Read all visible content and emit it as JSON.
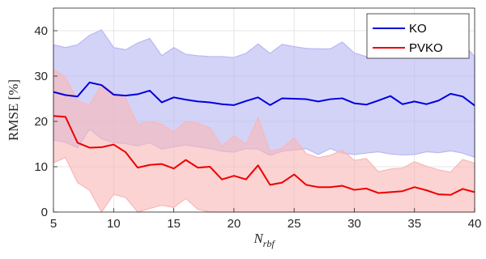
{
  "chart_data": {
    "type": "area",
    "title": "",
    "xlabel": "N",
    "xlabel_subscript": "rbf",
    "ylabel": "RMSE [%]",
    "xlim": [
      5,
      40
    ],
    "ylim": [
      0,
      45
    ],
    "xticks": [
      5,
      10,
      15,
      20,
      25,
      30,
      35,
      40
    ],
    "yticks": [
      0,
      10,
      20,
      30,
      40
    ],
    "grid": true,
    "legend_position": "top-right",
    "x": [
      5,
      6,
      7,
      8,
      9,
      10,
      11,
      12,
      13,
      14,
      15,
      16,
      17,
      18,
      19,
      20,
      21,
      22,
      23,
      24,
      25,
      26,
      27,
      28,
      29,
      30,
      31,
      32,
      33,
      34,
      35,
      36,
      37,
      38,
      39,
      40
    ],
    "series": [
      {
        "name": "KO",
        "color": "#0000dd",
        "band_color": "#b8b8f4",
        "mean": [
          26.5,
          25.8,
          25.5,
          28.6,
          28.0,
          25.9,
          25.7,
          26.0,
          26.8,
          24.2,
          25.3,
          24.8,
          24.4,
          24.2,
          23.8,
          23.6,
          24.5,
          25.3,
          23.6,
          25.1,
          25.0,
          24.9,
          24.4,
          24.9,
          25.1,
          24.0,
          23.7,
          24.6,
          25.6,
          23.8,
          24.4,
          23.8,
          24.6,
          26.1,
          25.5,
          23.5
        ],
        "upper": [
          36.9,
          36.3,
          36.9,
          39.0,
          40.2,
          36.3,
          35.8,
          37.3,
          38.3,
          34.5,
          36.3,
          34.8,
          34.5,
          34.3,
          34.3,
          34.1,
          35.0,
          37.1,
          35.0,
          37.0,
          36.5,
          36.1,
          36.0,
          36.0,
          37.5,
          35.1,
          34.3,
          34.9,
          36.1,
          34.6,
          35.8,
          35.6,
          35.8,
          38.0,
          37.3,
          34.3
        ],
        "lower": [
          15.9,
          15.4,
          14.2,
          18.3,
          16.2,
          15.3,
          15.1,
          14.6,
          15.3,
          13.9,
          14.4,
          14.8,
          14.4,
          14.0,
          13.4,
          13.2,
          14.0,
          13.9,
          12.5,
          13.4,
          13.7,
          14.0,
          12.7,
          14.0,
          13.0,
          12.7,
          13.0,
          13.3,
          12.8,
          12.6,
          12.7,
          13.3,
          13.1,
          13.5,
          13.0,
          12.1
        ]
      },
      {
        "name": "PVKO",
        "color": "#ee0000",
        "band_color": "#f8b8b8",
        "mean": [
          21.2,
          21.0,
          15.3,
          14.2,
          14.3,
          14.9,
          13.2,
          9.8,
          10.4,
          10.6,
          9.6,
          11.5,
          9.8,
          10.0,
          7.2,
          8.0,
          7.2,
          10.3,
          6.0,
          6.5,
          8.3,
          6.0,
          5.5,
          5.5,
          5.8,
          4.9,
          5.2,
          4.2,
          4.4,
          4.6,
          5.5,
          4.8,
          3.9,
          3.8,
          5.1,
          4.4
        ],
        "upper": [
          31.5,
          29.8,
          24.5,
          23.6,
          28.2,
          26.3,
          25.1,
          19.3,
          20.0,
          19.4,
          17.7,
          20.0,
          19.6,
          18.6,
          14.5,
          16.9,
          15.0,
          20.8,
          13.4,
          14.1,
          16.4,
          12.9,
          12.0,
          12.5,
          13.7,
          11.4,
          11.8,
          8.9,
          9.5,
          9.7,
          11.1,
          10.1,
          9.3,
          8.8,
          11.6,
          10.8
        ],
        "lower": [
          10.9,
          12.0,
          6.5,
          4.8,
          0.0,
          3.9,
          3.2,
          0.0,
          0.8,
          1.5,
          1.0,
          3.0,
          0.6,
          0.0,
          0.0,
          0.0,
          0.0,
          0.0,
          0.0,
          0.0,
          0.0,
          0.0,
          0.0,
          0.0,
          0.0,
          0.0,
          0.0,
          0.0,
          0.0,
          0.0,
          0.0,
          0.0,
          0.0,
          0.0,
          0.0,
          0.0
        ]
      }
    ]
  }
}
